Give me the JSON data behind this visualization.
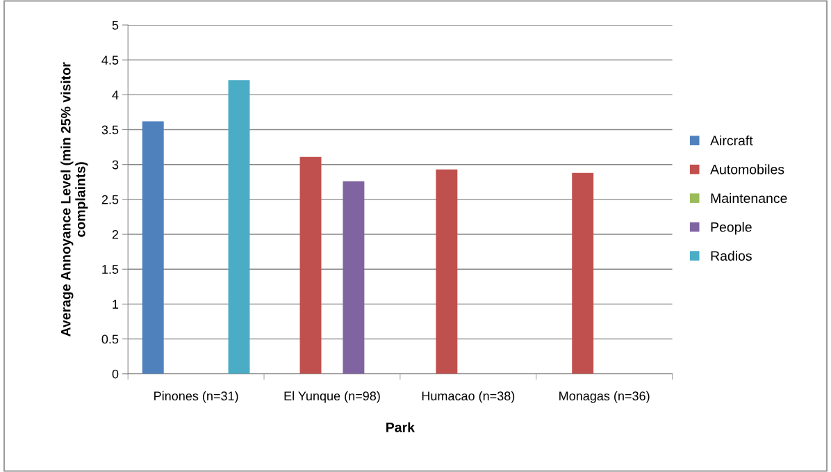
{
  "chart_data": {
    "type": "bar",
    "xlabel": "Park",
    "ylabel": "Average Annoyance Level (min 25% visitor\ncomplaints)",
    "categories": [
      "Pinones (n=31)",
      "El Yunque (n=98)",
      "Humacao (n=38)",
      "Monagas (n=36)"
    ],
    "series": [
      {
        "name": "Aircraft",
        "color": "#4f81bd",
        "values": [
          3.62,
          null,
          null,
          null
        ]
      },
      {
        "name": "Automobiles",
        "color": "#c0504d",
        "values": [
          null,
          3.11,
          2.93,
          2.88
        ]
      },
      {
        "name": "Maintenance",
        "color": "#9bbb59",
        "values": [
          null,
          null,
          null,
          null
        ]
      },
      {
        "name": "People",
        "color": "#8064a2",
        "values": [
          null,
          2.76,
          null,
          null
        ]
      },
      {
        "name": "Radios",
        "color": "#4bacc6",
        "values": [
          4.21,
          null,
          null,
          null
        ]
      }
    ],
    "ylim": [
      0,
      5
    ],
    "yticks": [
      0,
      0.5,
      1,
      1.5,
      2,
      2.5,
      3,
      3.5,
      4,
      4.5,
      5
    ],
    "grid": "y",
    "legend": "right"
  }
}
